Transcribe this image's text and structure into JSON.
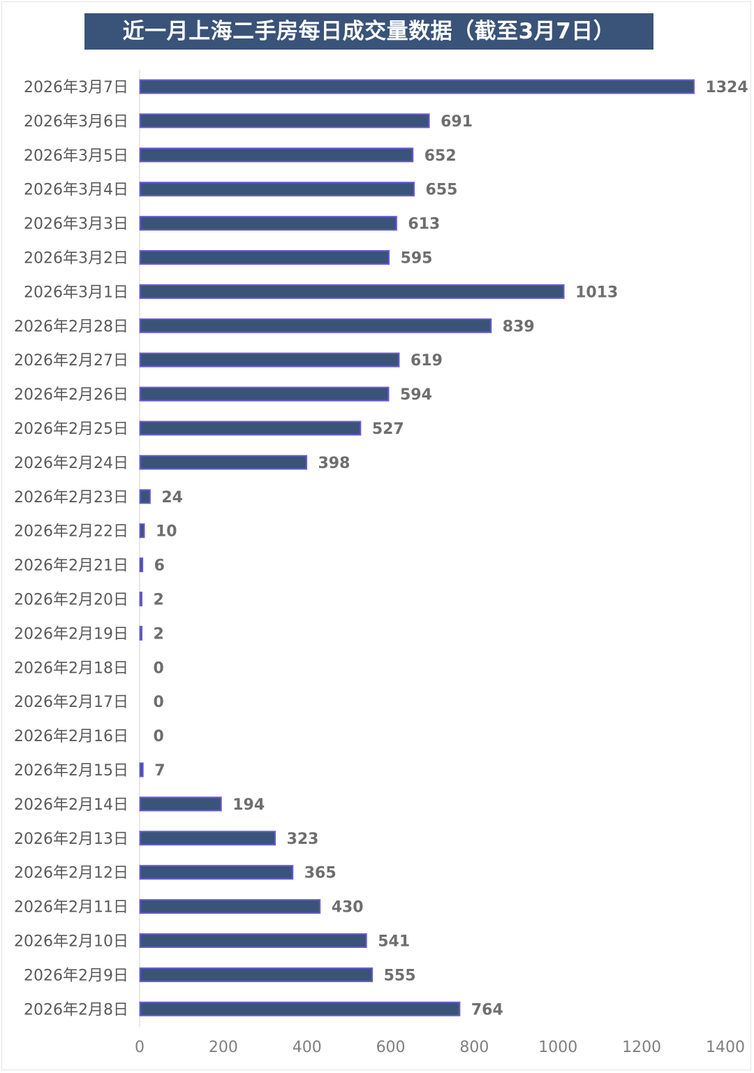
{
  "chart_data": {
    "type": "bar",
    "orientation": "horizontal",
    "title": "近一月上海二手房每日成交量数据（截至3月7日）",
    "categories": [
      "2026年3月7日",
      "2026年3月6日",
      "2026年3月5日",
      "2026年3月4日",
      "2026年3月3日",
      "2026年3月2日",
      "2026年3月1日",
      "2026年2月28日",
      "2026年2月27日",
      "2026年2月26日",
      "2026年2月25日",
      "2026年2月24日",
      "2026年2月23日",
      "2026年2月22日",
      "2026年2月21日",
      "2026年2月20日",
      "2026年2月19日",
      "2026年2月18日",
      "2026年2月17日",
      "2026年2月16日",
      "2026年2月15日",
      "2026年2月14日",
      "2026年2月13日",
      "2026年2月12日",
      "2026年2月11日",
      "2026年2月10日",
      "2026年2月9日",
      "2026年2月8日"
    ],
    "values": [
      1324,
      691,
      652,
      655,
      613,
      595,
      1013,
      839,
      619,
      594,
      527,
      398,
      24,
      10,
      6,
      2,
      2,
      0,
      0,
      0,
      7,
      194,
      323,
      365,
      430,
      541,
      555,
      764
    ],
    "xlim": [
      0,
      1400
    ],
    "xticks": [
      0,
      200,
      400,
      600,
      800,
      1000,
      1200,
      1400
    ],
    "xlabel": "",
    "ylabel": "",
    "grid": false,
    "legend": "none",
    "colors": {
      "bar_fill": "#3a5378",
      "bar_stroke": "#6a5ad6",
      "title_bg": "#3a5378",
      "title_text": "#ffffff",
      "axis": "#d0d0d0"
    }
  }
}
